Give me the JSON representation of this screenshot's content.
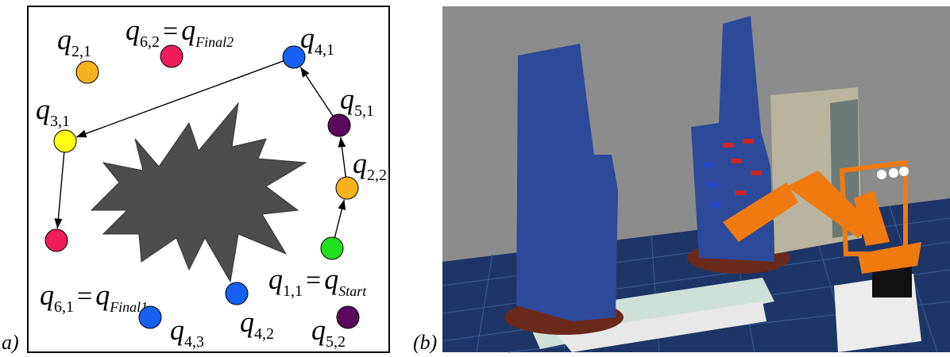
{
  "panel_a": {
    "label": "a)",
    "nodes": [
      {
        "color": "#f7b21c",
        "label": [
          {
            "text": "q",
            "sub": "2,1"
          }
        ]
      },
      {
        "color": "#ee1c5a",
        "label": [
          {
            "text": "q",
            "sub": "6,2"
          },
          {
            "text": "="
          },
          {
            "text": "q",
            "sub": "Final2"
          }
        ]
      },
      {
        "color": "#1560f0",
        "label": [
          {
            "text": "q",
            "sub": "4,1"
          }
        ]
      },
      {
        "color": "#ffff10",
        "label": [
          {
            "text": "q",
            "sub": "3,1"
          }
        ]
      },
      {
        "color": "#5a0a5a",
        "label": [
          {
            "text": "q",
            "sub": "5,1"
          }
        ]
      },
      {
        "color": "#f7b21c",
        "label": [
          {
            "text": "q",
            "sub": "2,2"
          }
        ]
      },
      {
        "color": "#20e020",
        "label": [
          {
            "text": "q",
            "sub": "1,1"
          },
          {
            "text": "="
          },
          {
            "text": "q",
            "sub": "Start"
          }
        ]
      },
      {
        "color": "#ee1c5a",
        "label": [
          {
            "text": "q",
            "sub": "6,1"
          },
          {
            "text": "="
          },
          {
            "text": "q",
            "sub": "Final1"
          }
        ]
      },
      {
        "color": "#1560f0",
        "label": [
          {
            "text": "q",
            "sub": "4,2"
          }
        ]
      },
      {
        "color": "#1560f0",
        "label": [
          {
            "text": "q",
            "sub": "4,3"
          }
        ]
      },
      {
        "color": "#5a0a5a",
        "label": [
          {
            "text": "q",
            "sub": "5,2"
          }
        ]
      }
    ]
  },
  "panel_b": {
    "label": "(b)"
  }
}
